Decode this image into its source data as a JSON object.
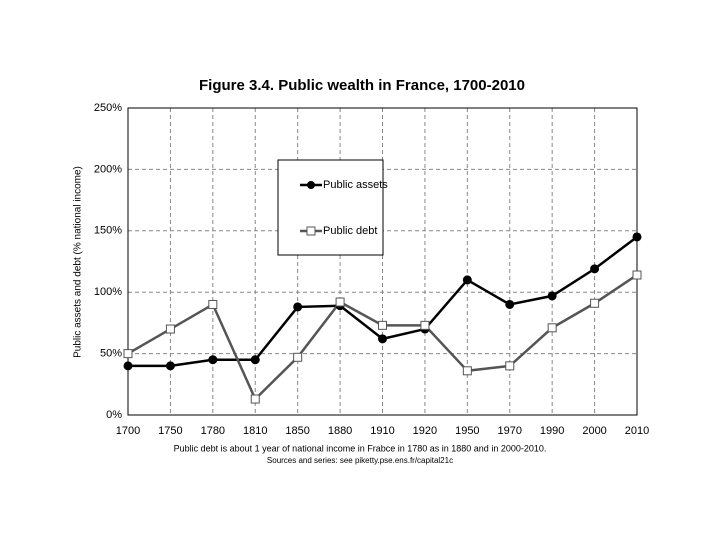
{
  "chart_data": {
    "type": "line",
    "title": "Figure 3.4. Public wealth in France, 1700-2010",
    "y_label": "Public assets and debt (% national income)",
    "notes": [
      "Public debt is about 1 year of national income in Frabce in 1780 as in 1880 and in 2000-2010.",
      "Sources and series: see piketty.pse.ens.fr/capital21c"
    ],
    "categories": [
      "1700",
      "1750",
      "1780",
      "1810",
      "1850",
      "1880",
      "1910",
      "1920",
      "1950",
      "1970",
      "1990",
      "2000",
      "2010"
    ],
    "series": [
      {
        "name": "Public assets",
        "color": "#000000",
        "marker": "circle",
        "values": [
          40,
          40,
          45,
          45,
          88,
          89,
          62,
          70,
          110,
          90,
          97,
          119,
          145
        ]
      },
      {
        "name": "Public debt",
        "color": "#555555",
        "marker": "square",
        "values": [
          50,
          70,
          90,
          13,
          47,
          92,
          73,
          73,
          36,
          40,
          71,
          91,
          114
        ]
      }
    ],
    "ylim": [
      0,
      250
    ],
    "yticks": [
      {
        "value": 0,
        "label": "0%"
      },
      {
        "value": 50,
        "label": "50%"
      },
      {
        "value": 100,
        "label": "100%"
      },
      {
        "value": 150,
        "label": "150%"
      },
      {
        "value": 200,
        "label": "200%"
      },
      {
        "value": 250,
        "label": "250%"
      }
    ],
    "grid": true
  }
}
